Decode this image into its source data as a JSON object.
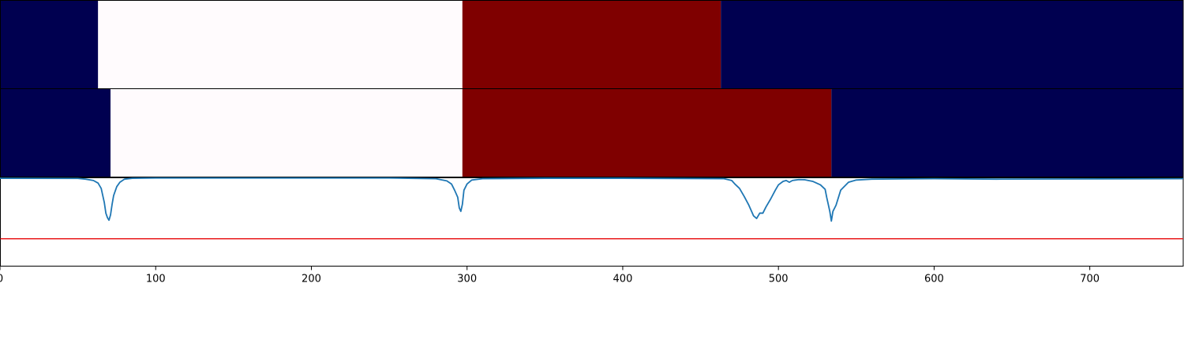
{
  "chart_data": {
    "type": "heatmap",
    "title": "",
    "xlabel": "",
    "ylabel": "",
    "xlim": [
      0,
      760
    ],
    "x_ticks": [
      0,
      100,
      200,
      300,
      400,
      500,
      600,
      700
    ],
    "x_tick_labels": [
      "0",
      "100",
      "200",
      "300",
      "400",
      "500",
      "600",
      "700"
    ],
    "colors": {
      "navy": "#000050",
      "white": "#fffbfd",
      "maroon": "#7f0000",
      "line": "#1f77b4",
      "threshold": "#e8191c",
      "border": "#000000"
    },
    "segment_rows": [
      {
        "segments": [
          {
            "start": 0,
            "end": 63,
            "color": "navy"
          },
          {
            "start": 63,
            "end": 297,
            "color": "white"
          },
          {
            "start": 297,
            "end": 463,
            "color": "maroon"
          },
          {
            "start": 463,
            "end": 760,
            "color": "navy"
          }
        ]
      },
      {
        "segments": [
          {
            "start": 0,
            "end": 71,
            "color": "navy"
          },
          {
            "start": 71,
            "end": 297,
            "color": "white"
          },
          {
            "start": 297,
            "end": 534,
            "color": "maroon"
          },
          {
            "start": 534,
            "end": 760,
            "color": "navy"
          }
        ]
      }
    ],
    "line_panel": {
      "ylim": [
        0,
        1
      ],
      "threshold": 0.31,
      "series": [
        {
          "x": [
            0,
            50,
            55,
            60,
            63,
            65,
            67,
            68,
            69,
            70,
            71,
            72,
            73,
            75,
            77,
            80,
            85,
            100,
            250,
            280,
            287,
            290,
            292,
            294,
            295,
            296,
            297,
            298,
            300,
            303,
            310,
            350,
            400,
            465,
            470,
            472,
            475,
            478,
            481,
            484,
            486,
            488,
            490,
            492,
            495,
            498,
            500,
            503,
            505,
            507,
            509,
            511,
            513,
            517,
            522,
            527,
            530,
            531,
            532,
            533,
            534,
            535,
            537,
            540,
            545,
            550,
            560,
            600,
            640,
            760
          ],
          "y": [
            0.995,
            0.993,
            0.985,
            0.97,
            0.94,
            0.88,
            0.72,
            0.6,
            0.55,
            0.52,
            0.58,
            0.7,
            0.8,
            0.9,
            0.95,
            0.985,
            0.995,
            0.998,
            0.998,
            0.99,
            0.965,
            0.93,
            0.86,
            0.78,
            0.66,
            0.62,
            0.7,
            0.86,
            0.93,
            0.975,
            0.99,
            0.995,
            0.995,
            0.99,
            0.97,
            0.93,
            0.88,
            0.79,
            0.69,
            0.57,
            0.54,
            0.6,
            0.6,
            0.67,
            0.76,
            0.86,
            0.92,
            0.96,
            0.97,
            0.95,
            0.97,
            0.975,
            0.98,
            0.978,
            0.96,
            0.92,
            0.87,
            0.78,
            0.7,
            0.62,
            0.51,
            0.62,
            0.69,
            0.86,
            0.95,
            0.975,
            0.985,
            0.99,
            0.985,
            0.99
          ]
        }
      ]
    }
  }
}
